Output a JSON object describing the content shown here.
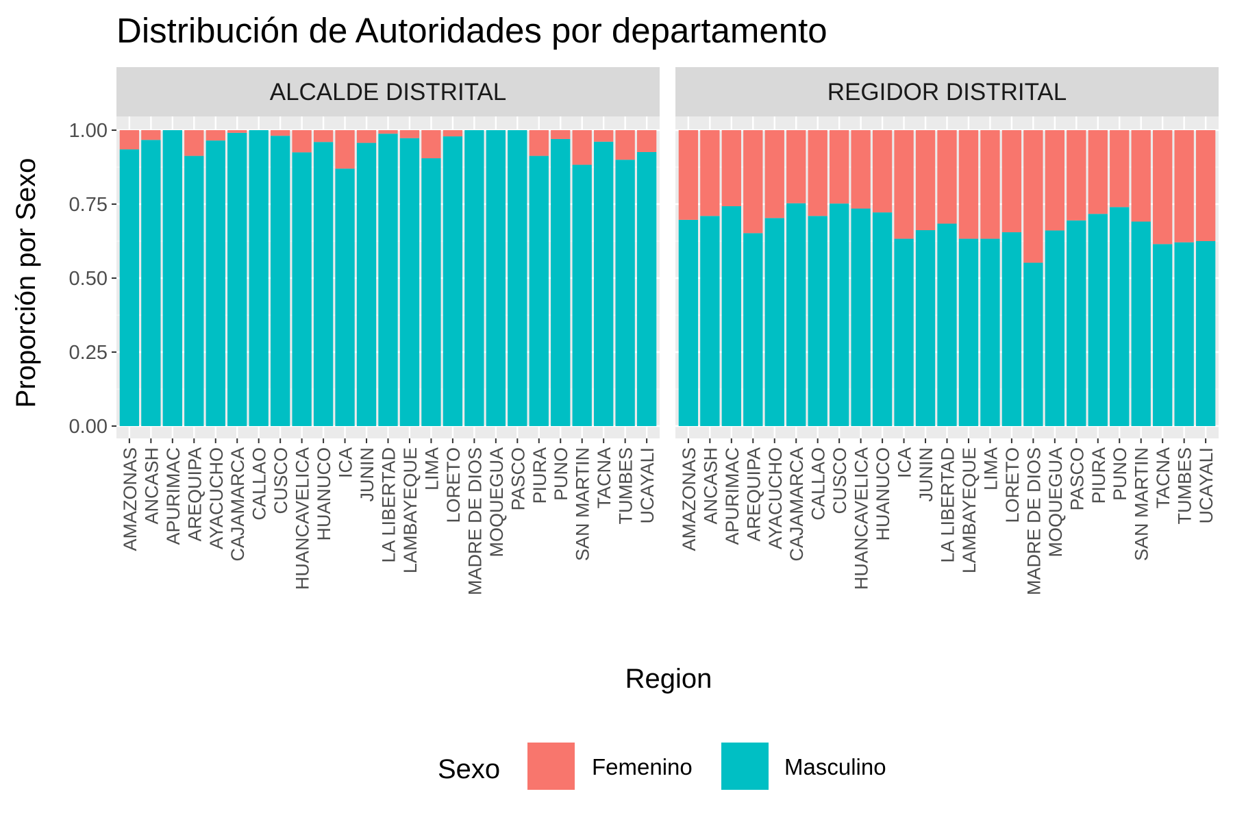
{
  "chart_data": {
    "type": "bar",
    "stacked": true,
    "title": "Distribución de Autoridades por departamento",
    "xlabel": "Region",
    "ylabel": "Proporción por Sexo",
    "ylim": [
      0,
      1
    ],
    "yticks": [
      "0.00",
      "0.25",
      "0.50",
      "0.75",
      "1.00"
    ],
    "grid": true,
    "legend": {
      "title": "Sexo",
      "position": "bottom",
      "items": [
        {
          "name": "Femenino",
          "color": "#F8766D"
        },
        {
          "name": "Masculino",
          "color": "#00BFC4"
        }
      ]
    },
    "categories": [
      "AMAZONAS",
      "ANCASH",
      "APURIMAC",
      "AREQUIPA",
      "AYACUCHO",
      "CAJAMARCA",
      "CALLAO",
      "CUSCO",
      "HUANCAVELICA",
      "HUANUCO",
      "ICA",
      "JUNIN",
      "LA LIBERTAD",
      "LAMBAYEQUE",
      "LIMA",
      "LORETO",
      "MADRE DE DIOS",
      "MOQUEGUA",
      "PASCO",
      "PIURA",
      "PUNO",
      "SAN MARTIN",
      "TACNA",
      "TUMBES",
      "UCAYALI"
    ],
    "facets": [
      {
        "label": "ALCALDE DISTRITAL",
        "series": [
          {
            "name": "Masculino",
            "values": [
              0.935,
              0.967,
              1.0,
              0.913,
              0.965,
              0.991,
              1.0,
              0.981,
              0.925,
              0.96,
              0.87,
              0.957,
              0.988,
              0.973,
              0.905,
              0.979,
              1.0,
              1.0,
              1.0,
              0.913,
              0.97,
              0.883,
              0.961,
              0.9,
              0.926
            ]
          },
          {
            "name": "Femenino",
            "values": [
              0.065,
              0.033,
              0.0,
              0.087,
              0.035,
              0.009,
              0.0,
              0.019,
              0.075,
              0.04,
              0.13,
              0.043,
              0.012,
              0.027,
              0.095,
              0.021,
              0.0,
              0.0,
              0.0,
              0.087,
              0.03,
              0.117,
              0.039,
              0.1,
              0.074
            ]
          }
        ]
      },
      {
        "label": "REGIDOR DISTRITAL",
        "series": [
          {
            "name": "Masculino",
            "values": [
              0.697,
              0.71,
              0.743,
              0.652,
              0.703,
              0.753,
              0.71,
              0.752,
              0.735,
              0.722,
              0.633,
              0.662,
              0.684,
              0.633,
              0.633,
              0.655,
              0.552,
              0.661,
              0.695,
              0.717,
              0.74,
              0.691,
              0.615,
              0.621,
              0.625
            ]
          },
          {
            "name": "Femenino",
            "values": [
              0.303,
              0.29,
              0.257,
              0.348,
              0.297,
              0.247,
              0.29,
              0.248,
              0.265,
              0.278,
              0.367,
              0.338,
              0.316,
              0.367,
              0.367,
              0.345,
              0.448,
              0.339,
              0.305,
              0.283,
              0.26,
              0.309,
              0.385,
              0.379,
              0.375
            ]
          }
        ]
      }
    ]
  }
}
